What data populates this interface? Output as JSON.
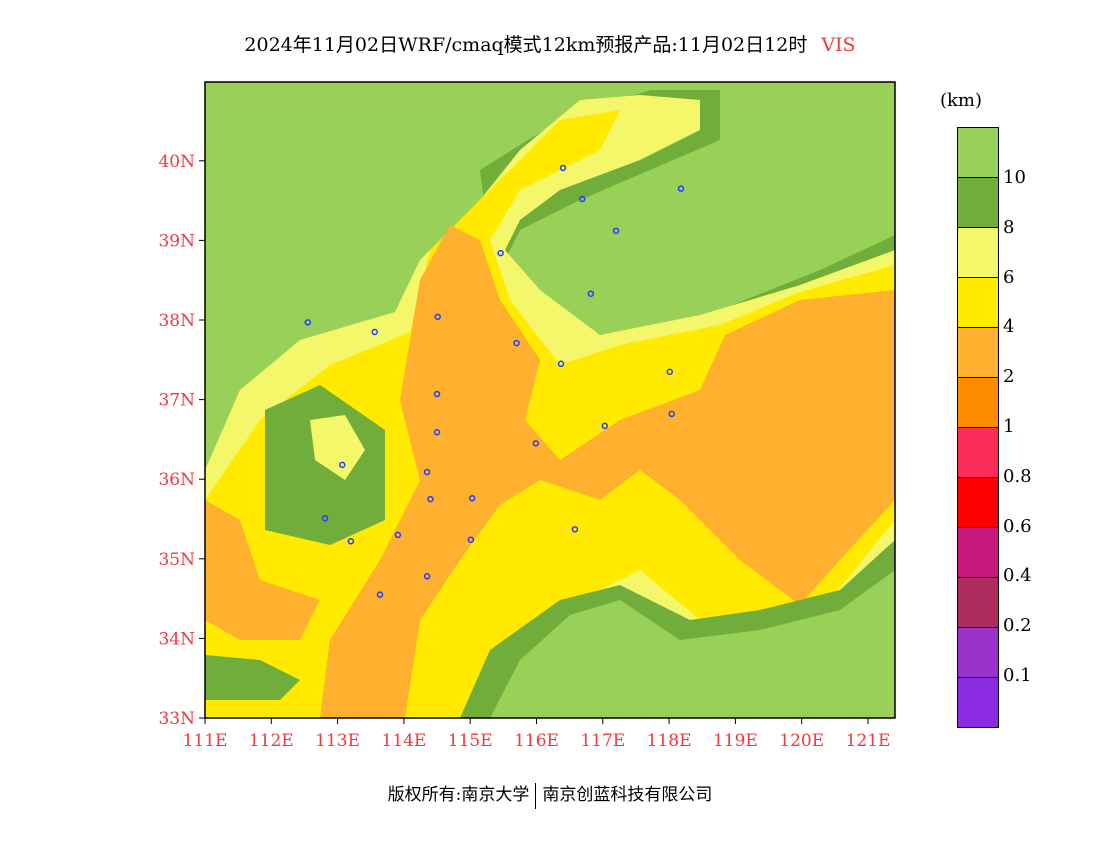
{
  "title": {
    "main": "2024年11月02日WRF/cmaq模式12km预报产品:11月02日12时",
    "variable": "VIS"
  },
  "legend": {
    "unit": "(km)",
    "colors": [
      "#99d158",
      "#70ad3a",
      "#f4f76a",
      "#ffea00",
      "#ffb02e",
      "#ff8c00",
      "#fb2c5a",
      "#ff0000",
      "#c8187f",
      "#ad2e5e",
      "#9933cc",
      "#8a2be2"
    ],
    "labels": [
      "10",
      "8",
      "6",
      "4",
      "2",
      "1",
      "0.8",
      "0.6",
      "0.4",
      "0.2",
      "0.1"
    ]
  },
  "axes": {
    "lat_labels": [
      "33N",
      "34N",
      "35N",
      "36N",
      "37N",
      "38N",
      "39N",
      "40N"
    ],
    "lon_labels": [
      "111E",
      "112E",
      "113E",
      "114E",
      "115E",
      "116E",
      "117E",
      "118E",
      "119E",
      "120E",
      "121E"
    ],
    "lon_range": [
      111,
      121.4
    ],
    "lat_range": [
      33,
      40.98
    ]
  },
  "stations": [
    [
      116.4,
      39.91
    ],
    [
      116.69,
      39.52
    ],
    [
      117.2,
      39.12
    ],
    [
      118.18,
      39.65
    ],
    [
      115.46,
      38.84
    ],
    [
      116.82,
      38.33
    ],
    [
      112.55,
      37.97
    ],
    [
      113.56,
      37.85
    ],
    [
      114.51,
      38.04
    ],
    [
      115.7,
      37.71
    ],
    [
      116.37,
      37.45
    ],
    [
      118.01,
      37.35
    ],
    [
      114.5,
      37.07
    ],
    [
      118.04,
      36.82
    ],
    [
      117.03,
      36.67
    ],
    [
      114.5,
      36.59
    ],
    [
      113.07,
      36.18
    ],
    [
      115.99,
      36.45
    ],
    [
      114.35,
      36.09
    ],
    [
      114.4,
      35.75
    ],
    [
      115.03,
      35.76
    ],
    [
      112.81,
      35.51
    ],
    [
      113.2,
      35.22
    ],
    [
      113.91,
      35.3
    ],
    [
      115.01,
      35.24
    ],
    [
      116.58,
      35.37
    ],
    [
      114.35,
      34.78
    ],
    [
      113.64,
      34.55
    ]
  ],
  "footer": {
    "left": "版权所有:南京大学",
    "right": "南京创蓝科技有限公司"
  }
}
